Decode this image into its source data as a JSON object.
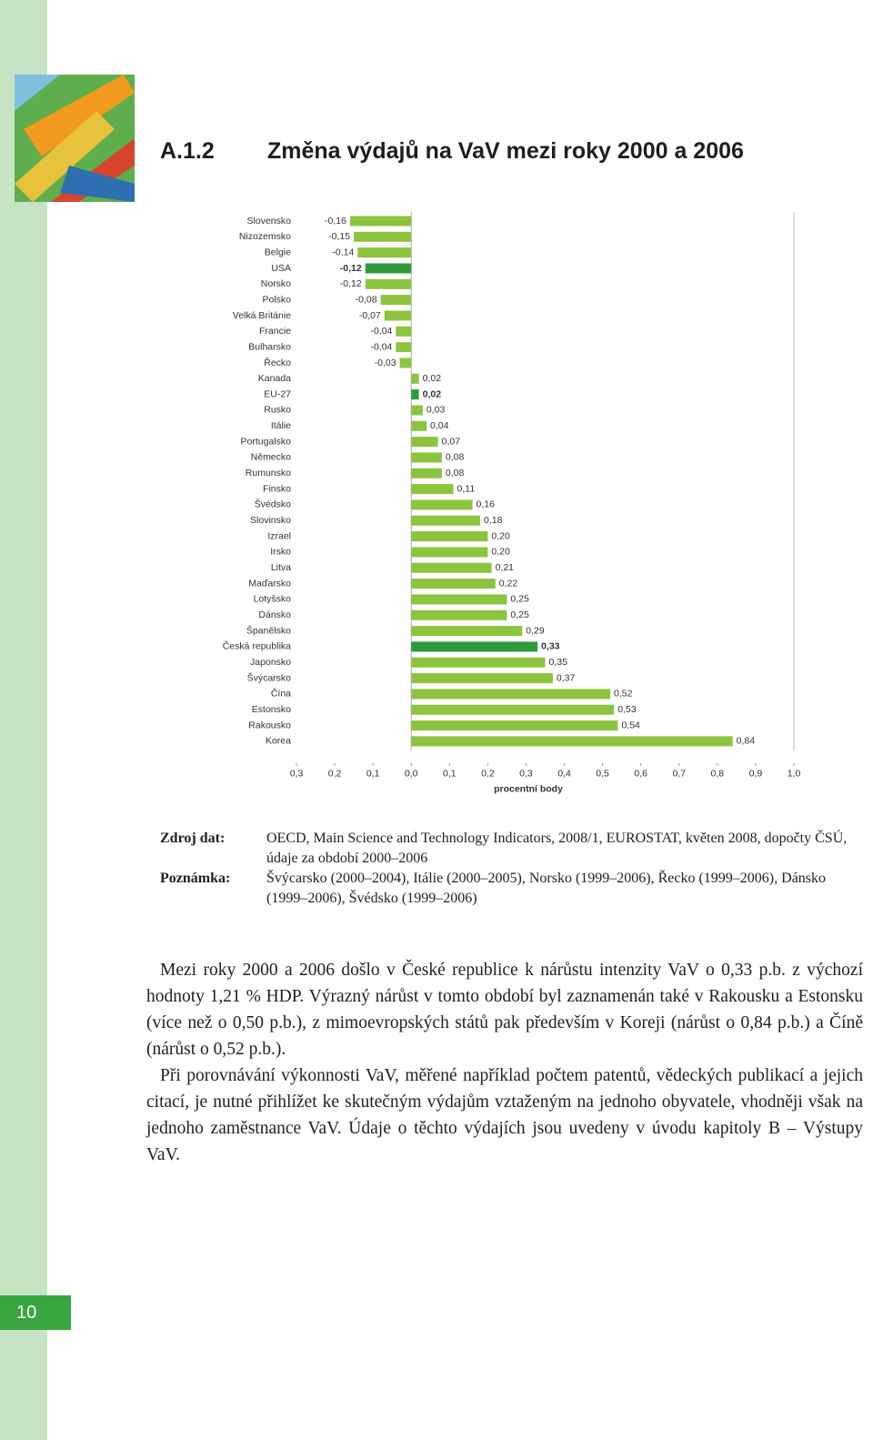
{
  "header": {
    "section": "A.1.2",
    "title": "Změna výdajů na VaV mezi roky 2000 a 2006"
  },
  "chart_data": {
    "type": "hbar",
    "x_label": "procentní body",
    "categories": [
      "Slovensko",
      "Nizozemsko",
      "Belgie",
      "USA",
      "Norsko",
      "Polsko",
      "Velká Británie",
      "Francie",
      "Bulharsko",
      "Řecko",
      "Kanada",
      "EU-27",
      "Rusko",
      "Itálie",
      "Portugalsko",
      "Německo",
      "Rumunsko",
      "Finsko",
      "Švédsko",
      "Slovinsko",
      "Izrael",
      "Irsko",
      "Litva",
      "Maďarsko",
      "Lotyšsko",
      "Dánsko",
      "Španělsko",
      "Česká republika",
      "Japonsko",
      "Švýcarsko",
      "Čína",
      "Estonsko",
      "Rakousko",
      "Korea"
    ],
    "values": [
      -0.16,
      -0.15,
      -0.14,
      -0.12,
      -0.12,
      -0.08,
      -0.07,
      -0.04,
      -0.04,
      -0.03,
      0.02,
      0.02,
      0.03,
      0.04,
      0.07,
      0.08,
      0.08,
      0.11,
      0.16,
      0.18,
      0.2,
      0.2,
      0.21,
      0.22,
      0.25,
      0.25,
      0.29,
      0.33,
      0.35,
      0.37,
      0.52,
      0.53,
      0.54,
      0.84
    ],
    "value_labels": [
      "-0,16",
      "-0,15",
      "-0,14",
      "-0,12",
      "-0,12",
      "-0,08",
      "-0,07",
      "-0,04",
      "-0,04",
      "-0,03",
      "0,02",
      "0,02",
      "0,03",
      "0,04",
      "0,07",
      "0,08",
      "0,08",
      "0,11",
      "0,16",
      "0,18",
      "0,20",
      "0,20",
      "0,21",
      "0,22",
      "0,25",
      "0,25",
      "0,29",
      "0,33",
      "0,35",
      "0,37",
      "0,52",
      "0,53",
      "0,54",
      "0,84"
    ],
    "color": "#8cc43f",
    "highlight": [
      3,
      11,
      27
    ],
    "highlight_color": "#2e9a3c",
    "xlim": [
      -0.3,
      1.0
    ],
    "xticks": [
      {
        "value": -0.3,
        "label": "0,3"
      },
      {
        "value": -0.2,
        "label": "0,2"
      },
      {
        "value": -0.1,
        "label": "0,1"
      },
      {
        "value": 0,
        "label": "0,0"
      },
      {
        "value": 0.1,
        "label": "0,1"
      },
      {
        "value": 0.2,
        "label": "0,2"
      },
      {
        "value": 0.3,
        "label": "0,3"
      },
      {
        "value": 0.4,
        "label": "0,4"
      },
      {
        "value": 0.5,
        "label": "0,5"
      },
      {
        "value": 0.6,
        "label": "0,6"
      },
      {
        "value": 0.7,
        "label": "0,7"
      },
      {
        "value": 0.8,
        "label": "0,8"
      },
      {
        "value": 0.9,
        "label": "0,9"
      },
      {
        "value": 1.0,
        "label": "1,0"
      }
    ]
  },
  "source": {
    "label": "Zdroj dat:",
    "text": "OECD, Main Science and Technology Indicators, 2008/1, EUROSTAT, květen 2008, dopočty ČSÚ, údaje za období 2000–2006"
  },
  "note": {
    "label": "Poznámka:",
    "text": "Švýcarsko (2000–2004), Itálie (2000–2005), Norsko (1999–2006), Řecko (1999–2006), Dánsko (1999–2006), Švédsko (1999–2006)"
  },
  "paragraphs": [
    "Mezi roky 2000 a 2006 došlo v České republice k nárůstu intenzity VaV o 0,33 p.b. z výchozí hodnoty 1,21 % HDP. Výrazný nárůst v tomto období byl zaznamenán také v Rakousku a Estonsku (více než o 0,50 p.b.), z mimoevropských států pak především v Koreji (nárůst o 0,84 p.b.) a Číně (nárůst o 0,52 p.b.).",
    "Při porovnávání výkonnosti VaV, měřené například počtem patentů, vědeckých publikací a jejich citací, je nutné přihlížet ke skutečným výdajům vztaženým na jednoho obyvatele, vhodněji však na jednoho zaměstnance VaV. Údaje o těchto výdajích jsou uvedeny v úvodu kapitoly B – Výstupy VaV."
  ],
  "page_number": "10"
}
